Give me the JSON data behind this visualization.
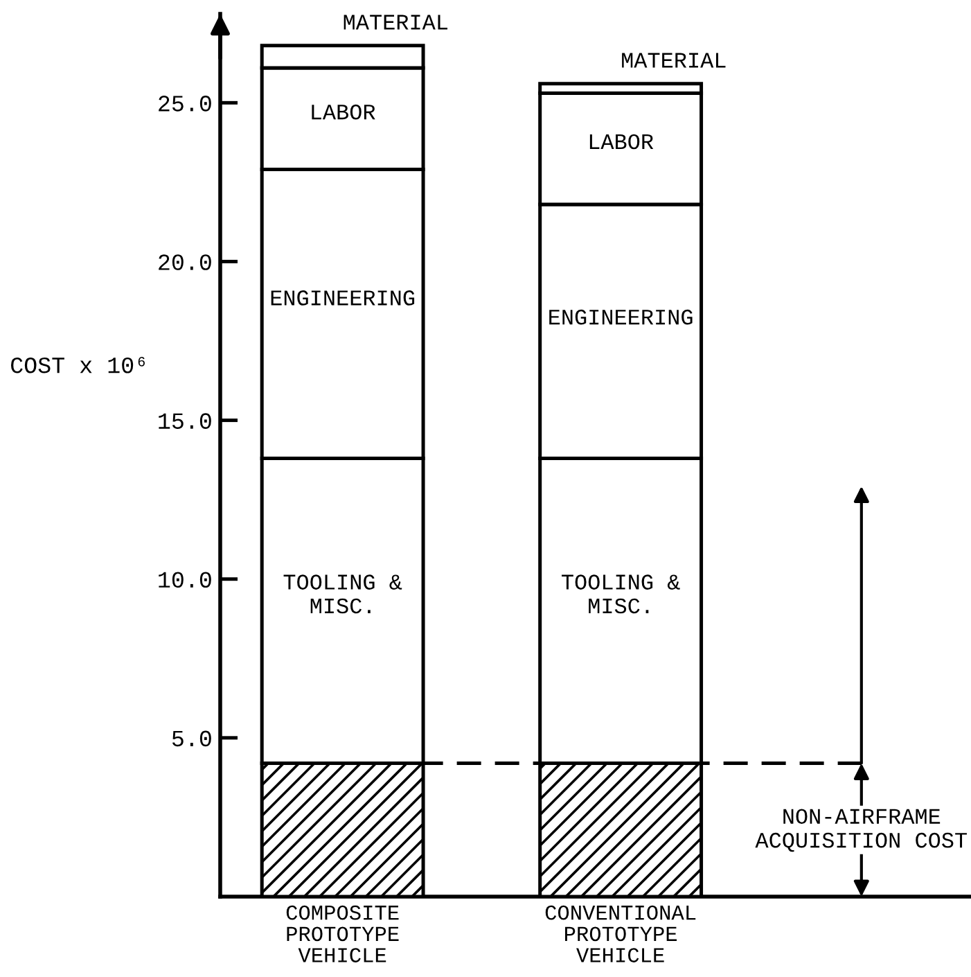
{
  "chart_data": {
    "type": "bar",
    "stacked": true,
    "categories": [
      "COMPOSITE\nPROTOTYPE\nVEHICLE",
      "CONVENTIONAL\nPROTOTYPE\nVEHICLE"
    ],
    "ylabel": "COST x 10⁶",
    "ylim": [
      0,
      27.8
    ],
    "yticks": [
      {
        "value": 5,
        "label": "5.0"
      },
      {
        "value": 10,
        "label": "10.0"
      },
      {
        "value": 15,
        "label": "15.0"
      },
      {
        "value": 20,
        "label": "20.0"
      },
      {
        "value": 25,
        "label": "25.0"
      }
    ],
    "series": [
      {
        "name": "NON-AIRFRAME\nACQUISITION COST",
        "color": "#000000",
        "values": [
          4.2,
          4.2
        ]
      },
      {
        "name": "TOOLING &\nMISC.",
        "color": "#ffffff",
        "values": [
          9.6,
          9.6
        ]
      },
      {
        "name": "ENGINEERING",
        "color": "#ffffff",
        "values": [
          9.1,
          8.0
        ]
      },
      {
        "name": "LABOR",
        "color": "#ffffff",
        "values": [
          3.2,
          3.5
        ]
      },
      {
        "name": "MATERIAL",
        "color": "#ffffff",
        "values": [
          0.7,
          0.3
        ]
      }
    ],
    "ref_lines": [
      {
        "axis": "y",
        "value": 4.2,
        "line_style": "dashed",
        "color": "#000000"
      }
    ]
  }
}
